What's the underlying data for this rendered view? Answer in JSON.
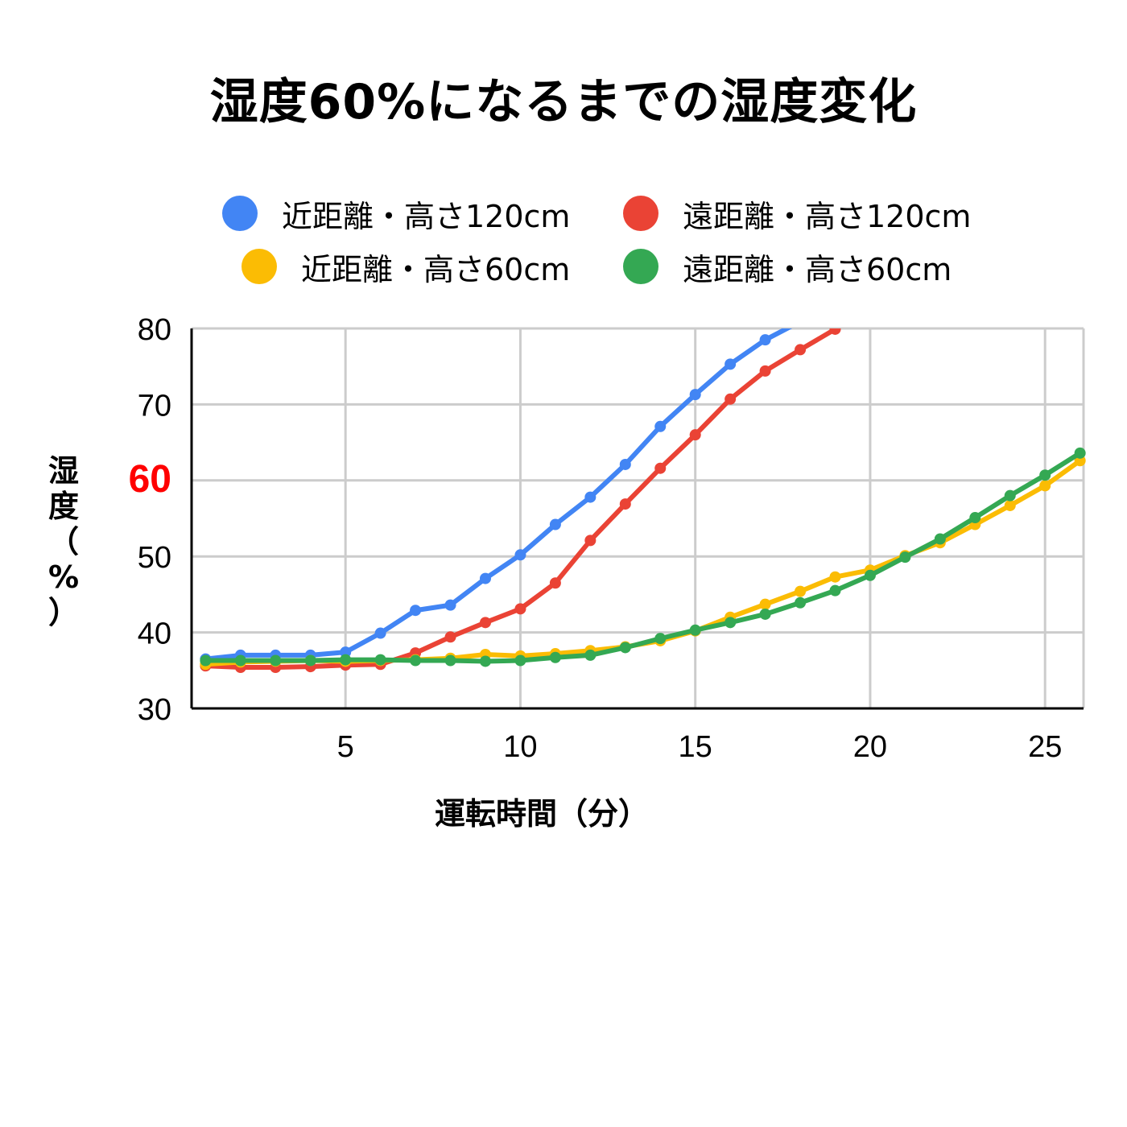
{
  "chart_data": {
    "type": "line",
    "title": "湿度60%になるまでの湿度変化",
    "xlabel": "運転時間（分）",
    "ylabel_chars": [
      "湿",
      "度",
      "（",
      "%",
      "）"
    ],
    "xlim": [
      0.6,
      26.1
    ],
    "ylim": [
      30,
      80
    ],
    "x_ticks": [
      5,
      10,
      15,
      20,
      25
    ],
    "y_ticks": [
      30,
      40,
      50,
      60,
      70,
      80
    ],
    "highlight_tick": {
      "value": 60,
      "color": "#ff0000"
    },
    "grid": true,
    "legend_position": "top",
    "x": [
      1,
      2,
      3,
      4,
      5,
      6,
      7,
      8,
      9,
      10,
      11,
      12,
      13,
      14,
      15,
      16,
      17,
      18,
      19,
      20,
      21,
      22,
      23,
      24,
      25,
      26
    ],
    "series": [
      {
        "name": "近距離・高さ120cm",
        "color": "#4285f4",
        "values": [
          36.5,
          37.0,
          37.0,
          37.0,
          37.4,
          39.9,
          42.9,
          43.6,
          47.1,
          50.2,
          54.2,
          57.8,
          62.1,
          67.1,
          71.3,
          75.3,
          78.5,
          80.9,
          null,
          null,
          null,
          null,
          null,
          null,
          null,
          null
        ]
      },
      {
        "name": "遠距離・高さ120cm",
        "color": "#ea4335",
        "values": [
          35.6,
          35.4,
          35.4,
          35.5,
          35.7,
          35.8,
          37.3,
          39.4,
          41.3,
          43.1,
          46.5,
          52.1,
          56.9,
          61.6,
          66.0,
          70.7,
          74.4,
          77.2,
          79.9,
          null,
          null,
          null,
          null,
          null,
          null,
          null
        ]
      },
      {
        "name": "近距離・高さ60cm",
        "color": "#fbbc04",
        "values": [
          35.8,
          36.1,
          36.2,
          36.3,
          36.2,
          36.3,
          36.4,
          36.6,
          37.1,
          36.9,
          37.2,
          37.6,
          38.1,
          38.9,
          40.2,
          42.0,
          43.7,
          45.4,
          47.3,
          48.2,
          50.1,
          51.8,
          54.2,
          56.7,
          59.3,
          62.6
        ]
      },
      {
        "name": "遠距離・高さ60cm",
        "color": "#34a853",
        "values": [
          36.3,
          36.3,
          36.3,
          36.3,
          36.4,
          36.4,
          36.3,
          36.3,
          36.2,
          36.3,
          36.7,
          37.0,
          38.0,
          39.2,
          40.3,
          41.3,
          42.4,
          43.9,
          45.5,
          47.5,
          49.9,
          52.3,
          55.1,
          58.0,
          60.7,
          63.6
        ]
      }
    ]
  }
}
